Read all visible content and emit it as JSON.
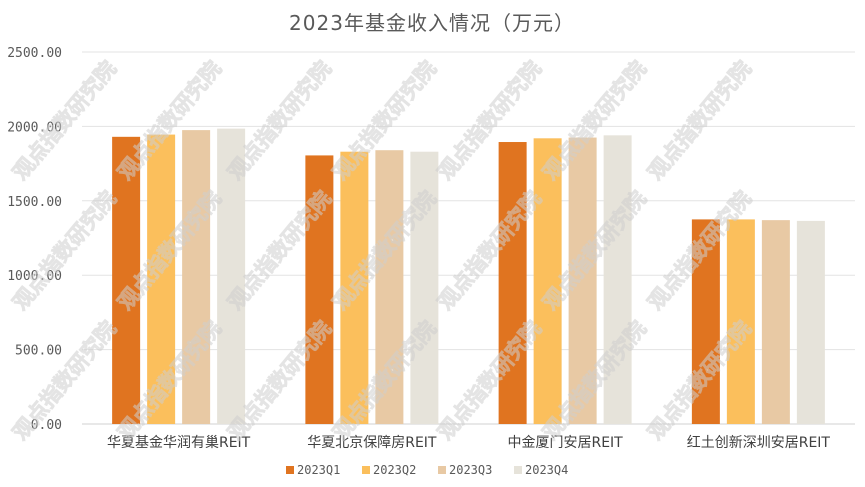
{
  "chart_data": {
    "type": "bar",
    "title": "2023年基金收入情况（万元）",
    "categories": [
      "华夏基金华润有巢REIT",
      "华夏北京保障房REIT",
      "中金厦门安居REIT",
      "红土创新深圳安居REIT"
    ],
    "series": [
      {
        "name": "2023Q1",
        "color": "#E07420",
        "values": [
          1930,
          1805,
          1895,
          1375
        ]
      },
      {
        "name": "2023Q2",
        "color": "#FBBF5C",
        "values": [
          1945,
          1830,
          1920,
          1375
        ]
      },
      {
        "name": "2023Q3",
        "color": "#E8C9A4",
        "values": [
          1975,
          1840,
          1925,
          1370
        ]
      },
      {
        "name": "2023Q4",
        "color": "#E6E3DA",
        "values": [
          1985,
          1830,
          1940,
          1365
        ]
      }
    ],
    "yticks": [
      "0.00",
      "500.00",
      "1000.00",
      "1500.00",
      "2000.00",
      "2500.00"
    ],
    "ylim": [
      0,
      2500
    ],
    "grid": true,
    "legend_position": "bottom-center",
    "xlabel": "",
    "ylabel": "",
    "watermark": "观点指数研究院"
  }
}
